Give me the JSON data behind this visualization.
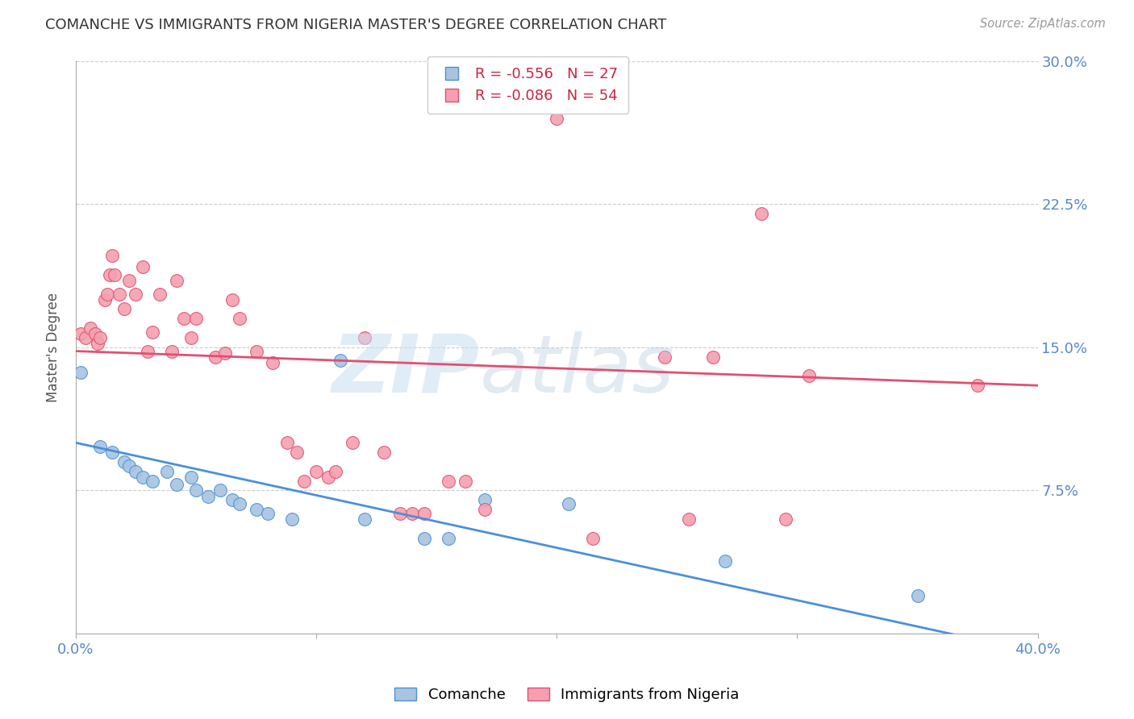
{
  "title": "COMANCHE VS IMMIGRANTS FROM NIGERIA MASTER'S DEGREE CORRELATION CHART",
  "source": "Source: ZipAtlas.com",
  "xlabel": "",
  "ylabel": "Master's Degree",
  "xlim": [
    0.0,
    0.4
  ],
  "ylim": [
    0.0,
    0.3
  ],
  "xticks": [
    0.0,
    0.1,
    0.2,
    0.3,
    0.4
  ],
  "xticklabels": [
    "0.0%",
    "",
    "",
    "",
    "40.0%"
  ],
  "yticks": [
    0.0,
    0.075,
    0.15,
    0.225,
    0.3
  ],
  "yticklabels_right": [
    "",
    "7.5%",
    "15.0%",
    "22.5%",
    "30.0%"
  ],
  "legend_r1": "R = -0.556",
  "legend_n1": "N = 27",
  "legend_r2": "R = -0.086",
  "legend_n2": "N = 54",
  "color_blue": "#a8c4e0",
  "color_pink": "#f4a0b0",
  "line_blue": "#4a90d9",
  "line_pink": "#e05070",
  "label1": "Comanche",
  "label2": "Immigrants from Nigeria",
  "watermark_zip": "ZIP",
  "watermark_atlas": "atlas",
  "blue_points": [
    [
      0.002,
      0.137
    ],
    [
      0.01,
      0.098
    ],
    [
      0.015,
      0.095
    ],
    [
      0.02,
      0.09
    ],
    [
      0.022,
      0.088
    ],
    [
      0.025,
      0.085
    ],
    [
      0.028,
      0.082
    ],
    [
      0.032,
      0.08
    ],
    [
      0.038,
      0.085
    ],
    [
      0.042,
      0.078
    ],
    [
      0.048,
      0.082
    ],
    [
      0.05,
      0.075
    ],
    [
      0.055,
      0.072
    ],
    [
      0.06,
      0.075
    ],
    [
      0.065,
      0.07
    ],
    [
      0.068,
      0.068
    ],
    [
      0.075,
      0.065
    ],
    [
      0.08,
      0.063
    ],
    [
      0.09,
      0.06
    ],
    [
      0.11,
      0.143
    ],
    [
      0.12,
      0.06
    ],
    [
      0.145,
      0.05
    ],
    [
      0.155,
      0.05
    ],
    [
      0.17,
      0.07
    ],
    [
      0.205,
      0.068
    ],
    [
      0.27,
      0.038
    ],
    [
      0.35,
      0.02
    ]
  ],
  "pink_points": [
    [
      0.002,
      0.157
    ],
    [
      0.004,
      0.155
    ],
    [
      0.006,
      0.16
    ],
    [
      0.008,
      0.157
    ],
    [
      0.009,
      0.152
    ],
    [
      0.01,
      0.155
    ],
    [
      0.012,
      0.175
    ],
    [
      0.013,
      0.178
    ],
    [
      0.014,
      0.188
    ],
    [
      0.015,
      0.198
    ],
    [
      0.016,
      0.188
    ],
    [
      0.018,
      0.178
    ],
    [
      0.02,
      0.17
    ],
    [
      0.022,
      0.185
    ],
    [
      0.025,
      0.178
    ],
    [
      0.028,
      0.192
    ],
    [
      0.03,
      0.148
    ],
    [
      0.032,
      0.158
    ],
    [
      0.035,
      0.178
    ],
    [
      0.04,
      0.148
    ],
    [
      0.042,
      0.185
    ],
    [
      0.045,
      0.165
    ],
    [
      0.048,
      0.155
    ],
    [
      0.05,
      0.165
    ],
    [
      0.058,
      0.145
    ],
    [
      0.062,
      0.147
    ],
    [
      0.065,
      0.175
    ],
    [
      0.068,
      0.165
    ],
    [
      0.075,
      0.148
    ],
    [
      0.082,
      0.142
    ],
    [
      0.088,
      0.1
    ],
    [
      0.092,
      0.095
    ],
    [
      0.095,
      0.08
    ],
    [
      0.1,
      0.085
    ],
    [
      0.105,
      0.082
    ],
    [
      0.108,
      0.085
    ],
    [
      0.115,
      0.1
    ],
    [
      0.12,
      0.155
    ],
    [
      0.128,
      0.095
    ],
    [
      0.135,
      0.063
    ],
    [
      0.14,
      0.063
    ],
    [
      0.145,
      0.063
    ],
    [
      0.155,
      0.08
    ],
    [
      0.162,
      0.08
    ],
    [
      0.17,
      0.065
    ],
    [
      0.2,
      0.27
    ],
    [
      0.215,
      0.05
    ],
    [
      0.245,
      0.145
    ],
    [
      0.255,
      0.06
    ],
    [
      0.265,
      0.145
    ],
    [
      0.285,
      0.22
    ],
    [
      0.295,
      0.06
    ],
    [
      0.305,
      0.135
    ],
    [
      0.375,
      0.13
    ]
  ]
}
